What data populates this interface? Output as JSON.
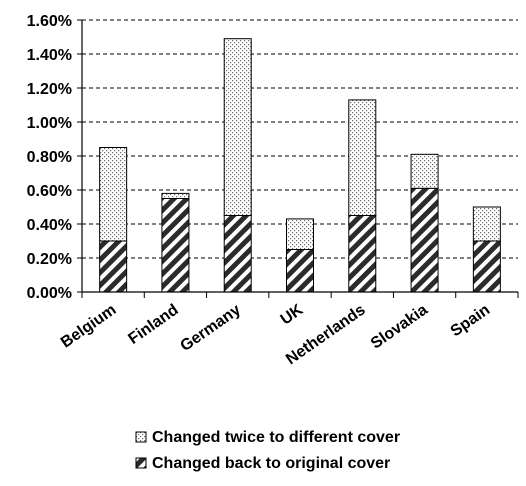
{
  "chart_data": {
    "type": "bar",
    "stacked": true,
    "categories": [
      "Belgium",
      "Finland",
      "Germany",
      "UK",
      "Netherlands",
      "Slovakia",
      "Spain"
    ],
    "series": [
      {
        "name": "Changed back to original cover",
        "values": [
          0.3,
          0.55,
          0.45,
          0.25,
          0.45,
          0.61,
          0.3
        ],
        "pattern": "diagonal-hatch"
      },
      {
        "name": "Changed twice to different cover",
        "values": [
          0.55,
          0.03,
          1.04,
          0.18,
          0.68,
          0.2,
          0.2
        ],
        "pattern": "dotted"
      }
    ],
    "title": "",
    "xlabel": "",
    "ylabel": "",
    "ylim": [
      0,
      1.6
    ],
    "yticks": [
      "0.00%",
      "0.20%",
      "0.40%",
      "0.60%",
      "0.80%",
      "1.00%",
      "1.20%",
      "1.40%",
      "1.60%"
    ],
    "grid": "horizontal-dashed",
    "legend_position": "bottom"
  },
  "legend": [
    {
      "label": "Changed twice to different cover",
      "pattern": "dotted"
    },
    {
      "label": "Changed back to original cover",
      "pattern": "diagonal-hatch"
    }
  ]
}
